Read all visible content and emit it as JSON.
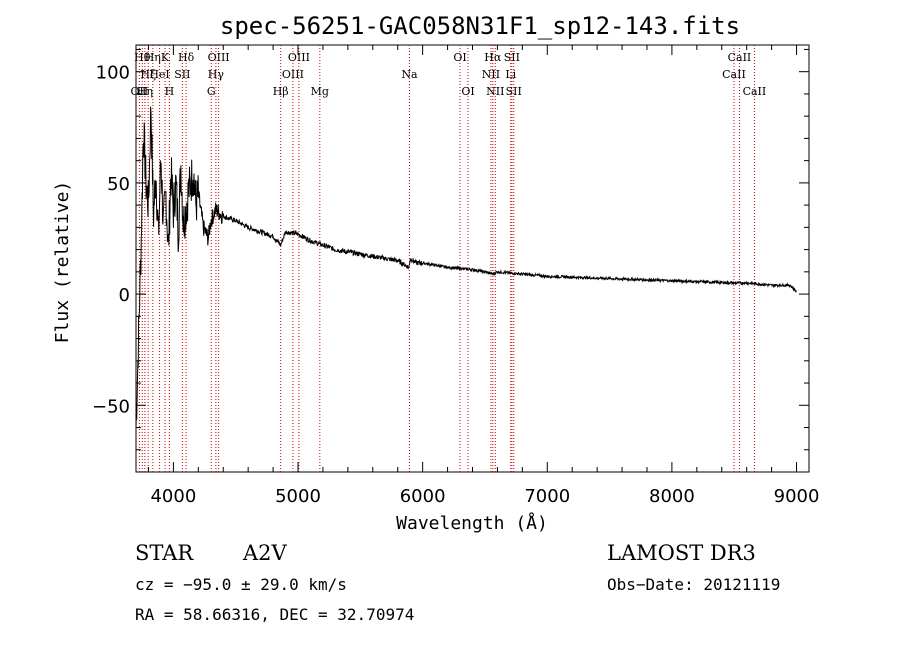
{
  "chart_data": {
    "type": "line",
    "title": "spec-56251-GAC058N31F1_sp12-143.fits",
    "xlabel": "Wavelength (Å)",
    "ylabel": "Flux (relative)",
    "xlim": [
      3700,
      9100
    ],
    "ylim": [
      -80,
      112
    ],
    "x_ticks": [
      4000,
      5000,
      6000,
      7000,
      8000,
      9000
    ],
    "x_tick_labels": [
      "4000",
      "5000",
      "6000",
      "7000",
      "8000",
      "9000"
    ],
    "y_ticks": [
      -50,
      0,
      50,
      100
    ],
    "y_tick_labels": [
      "−50",
      "0",
      "50",
      "100"
    ],
    "grid": false,
    "series": [
      {
        "name": "spectrum",
        "x": [
          3700,
          3720,
          3740,
          3760,
          3780,
          3800,
          3820,
          3840,
          3860,
          3880,
          3900,
          3920,
          3940,
          3960,
          3980,
          4000,
          4020,
          4040,
          4060,
          4080,
          4100,
          4120,
          4140,
          4160,
          4180,
          4200,
          4240,
          4280,
          4300,
          4340,
          4400,
          4500,
          4600,
          4700,
          4800,
          4860,
          4900,
          5000,
          5100,
          5200,
          5300,
          5400,
          5500,
          5600,
          5700,
          5800,
          5890,
          5900,
          5950,
          6000,
          6200,
          6400,
          6500,
          6563,
          6600,
          6800,
          7000,
          7500,
          8000,
          8500,
          8600,
          8800,
          8950,
          9000
        ],
        "y": [
          -60,
          -20,
          20,
          75,
          50,
          40,
          85,
          35,
          55,
          25,
          62,
          30,
          45,
          20,
          55,
          38,
          50,
          28,
          58,
          32,
          38,
          46,
          50,
          56,
          40,
          45,
          30,
          25,
          33,
          38,
          35,
          33,
          30,
          28,
          26,
          22,
          28,
          27,
          24,
          22,
          20,
          19,
          18,
          17,
          16,
          15,
          12,
          16,
          14,
          14,
          12,
          11,
          10,
          9,
          10,
          9,
          8,
          7,
          6,
          5,
          5,
          4,
          4,
          1
        ]
      }
    ],
    "lines": [
      {
        "wavelength": 3727,
        "label": "OII",
        "row": 3
      },
      {
        "wavelength": 3750,
        "label": "Hθ",
        "row": 1
      },
      {
        "wavelength": 3771,
        "label": "Hη",
        "row": 3
      },
      {
        "wavelength": 3798,
        "label": "Hζ",
        "row": 2
      },
      {
        "wavelength": 3835,
        "label": "Hη",
        "row": 1
      },
      {
        "wavelength": 3889,
        "label": "HeI",
        "row": 2
      },
      {
        "wavelength": 3933,
        "label": "K",
        "row": 1
      },
      {
        "wavelength": 3968,
        "label": "H",
        "row": 3
      },
      {
        "wavelength": 4072,
        "label": "SII",
        "row": 2
      },
      {
        "wavelength": 4102,
        "label": "Hδ",
        "row": 1
      },
      {
        "wavelength": 4304,
        "label": "G",
        "row": 3
      },
      {
        "wavelength": 4341,
        "label": "Hγ",
        "row": 2
      },
      {
        "wavelength": 4363,
        "label": "OIII",
        "row": 1
      },
      {
        "wavelength": 4861,
        "label": "Hβ",
        "row": 3
      },
      {
        "wavelength": 4959,
        "label": "OIII",
        "row": 2
      },
      {
        "wavelength": 5007,
        "label": "OIII",
        "row": 1
      },
      {
        "wavelength": 5175,
        "label": "Mg",
        "row": 3
      },
      {
        "wavelength": 5894,
        "label": "Na",
        "row": 2
      },
      {
        "wavelength": 6300,
        "label": "OI",
        "row": 1
      },
      {
        "wavelength": 6364,
        "label": "OI",
        "row": 3
      },
      {
        "wavelength": 6548,
        "label": "NII",
        "row": 2
      },
      {
        "wavelength": 6563,
        "label": "Hα",
        "row": 1
      },
      {
        "wavelength": 6583,
        "label": "NII",
        "row": 3
      },
      {
        "wavelength": 6707,
        "label": "Li",
        "row": 2
      },
      {
        "wavelength": 6716,
        "label": "SII",
        "row": 1
      },
      {
        "wavelength": 6731,
        "label": "SII",
        "row": 3
      },
      {
        "wavelength": 8498,
        "label": "CaII",
        "row": 2
      },
      {
        "wavelength": 8542,
        "label": "CaII",
        "row": 1
      },
      {
        "wavelength": 8662,
        "label": "CaII",
        "row": 3
      }
    ],
    "line_color": "#cc0000"
  },
  "info": {
    "object_type": "STAR",
    "subclass": "A2V",
    "survey": "LAMOST DR3",
    "cz": "cz = −95.0 ± 29.0 km/s",
    "obs_date": "Obs−Date: 20121119",
    "radec": "RA =  58.66316, DEC =  32.70974"
  }
}
